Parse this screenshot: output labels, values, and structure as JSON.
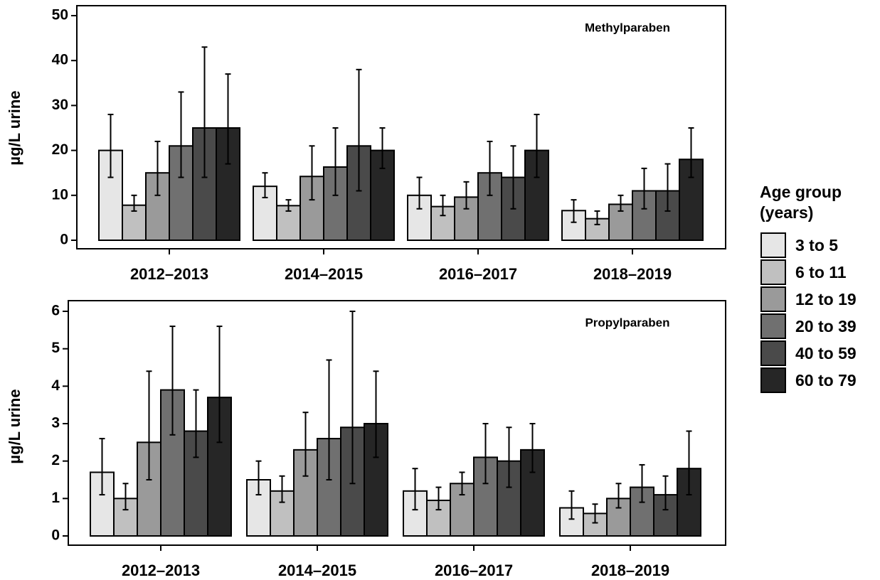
{
  "legend_title": "Age group (years)",
  "chart_data": [
    {
      "type": "bar",
      "annotation": "Methylparaben",
      "ylabel": "µg/L urine",
      "categories": [
        "2012–2013",
        "2014–2015",
        "2016–2017",
        "2018–2019"
      ],
      "ylim": [
        0,
        50
      ],
      "yticks": [
        0,
        10,
        20,
        30,
        40,
        50
      ],
      "series": [
        {
          "name": "3 to 5",
          "color": "#e6e6e6",
          "values": [
            20,
            12,
            10,
            6.6
          ],
          "error_low": [
            14,
            9.5,
            7,
            4
          ],
          "error_high": [
            28,
            15,
            14,
            9
          ]
        },
        {
          "name": "6 to 11",
          "color": "#c0c0c0",
          "values": [
            7.8,
            7.7,
            7.5,
            4.8
          ],
          "error_low": [
            6.5,
            6.5,
            5.5,
            3.5
          ],
          "error_high": [
            10,
            9,
            10,
            6.5
          ]
        },
        {
          "name": "12 to 19",
          "color": "#9a9a9a",
          "values": [
            15,
            14.2,
            9.6,
            8
          ],
          "error_low": [
            10,
            9,
            7,
            6.5
          ],
          "error_high": [
            22,
            21,
            13,
            10
          ]
        },
        {
          "name": "20 to 39",
          "color": "#707070",
          "values": [
            21,
            16.3,
            15,
            11
          ],
          "error_low": [
            14,
            10,
            10,
            7
          ],
          "error_high": [
            33,
            25,
            22,
            16
          ]
        },
        {
          "name": "40 to 59",
          "color": "#4a4a4a",
          "values": [
            25,
            21,
            14,
            11
          ],
          "error_low": [
            14,
            11,
            7,
            6.5
          ],
          "error_high": [
            43,
            38,
            21,
            17
          ]
        },
        {
          "name": "60 to 79",
          "color": "#262626",
          "values": [
            25,
            20,
            20,
            18
          ],
          "error_low": [
            17,
            16,
            14,
            14
          ],
          "error_high": [
            37,
            25,
            28,
            25
          ]
        }
      ]
    },
    {
      "type": "bar",
      "annotation": "Propylparaben",
      "ylabel": "µg/L urine",
      "categories": [
        "2012–2013",
        "2014–2015",
        "2016–2017",
        "2018–2019"
      ],
      "ylim": [
        0,
        6
      ],
      "yticks": [
        0,
        1,
        2,
        3,
        4,
        5,
        6
      ],
      "series": [
        {
          "name": "3 to 5",
          "color": "#e6e6e6",
          "values": [
            1.7,
            1.5,
            1.2,
            0.75
          ],
          "error_low": [
            1.1,
            1.1,
            0.7,
            0.45
          ],
          "error_high": [
            2.6,
            2.0,
            1.8,
            1.2
          ]
        },
        {
          "name": "6 to 11",
          "color": "#c0c0c0",
          "values": [
            1.0,
            1.2,
            0.95,
            0.6
          ],
          "error_low": [
            0.7,
            0.9,
            0.7,
            0.35
          ],
          "error_high": [
            1.4,
            1.6,
            1.3,
            0.85
          ]
        },
        {
          "name": "12 to 19",
          "color": "#9a9a9a",
          "values": [
            2.5,
            2.3,
            1.4,
            1.0
          ],
          "error_low": [
            1.5,
            1.6,
            1.1,
            0.75
          ],
          "error_high": [
            4.4,
            3.3,
            1.7,
            1.4
          ]
        },
        {
          "name": "20 to 39",
          "color": "#707070",
          "values": [
            3.9,
            2.6,
            2.1,
            1.3
          ],
          "error_low": [
            2.7,
            1.5,
            1.4,
            0.9
          ],
          "error_high": [
            5.6,
            4.7,
            3.0,
            1.9
          ]
        },
        {
          "name": "40 to 59",
          "color": "#4a4a4a",
          "values": [
            2.8,
            2.9,
            2.0,
            1.1
          ],
          "error_low": [
            2.1,
            1.4,
            1.3,
            0.7
          ],
          "error_high": [
            3.9,
            6.0,
            2.9,
            1.6
          ]
        },
        {
          "name": "60 to 79",
          "color": "#262626",
          "values": [
            3.7,
            3.0,
            2.3,
            1.8
          ],
          "error_low": [
            2.5,
            2.1,
            1.7,
            1.1
          ],
          "error_high": [
            5.6,
            4.4,
            3.0,
            2.8
          ]
        }
      ]
    }
  ]
}
